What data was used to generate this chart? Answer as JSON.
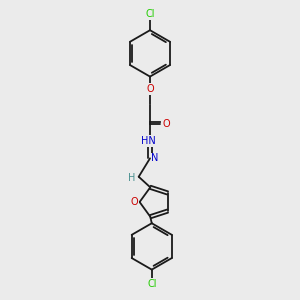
{
  "background_color": "#ebebeb",
  "bond_color": "#1a1a1a",
  "atom_colors": {
    "C": "#1a1a1a",
    "H": "#4a9090",
    "N": "#0000cc",
    "O": "#cc0000",
    "Cl": "#22cc00"
  },
  "font_size": 7.0,
  "figsize": [
    3.0,
    3.0
  ],
  "dpi": 100,
  "xlim": [
    0,
    10
  ],
  "ylim": [
    0,
    10
  ]
}
